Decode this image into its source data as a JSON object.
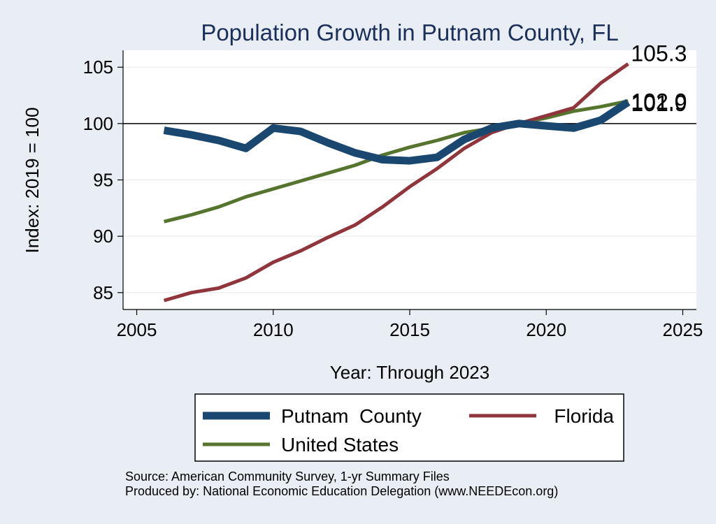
{
  "chart_data": {
    "type": "line",
    "title": "Population Growth in Putnam County, FL",
    "xlabel": "Year: Through 2023",
    "ylabel": "Index: 2019 = 100",
    "xlim": [
      2004.5,
      2025.5
    ],
    "ylim": [
      83.5,
      106.5
    ],
    "xticks": [
      "2005",
      "2010",
      "2015",
      "2020",
      "2025"
    ],
    "yticks": [
      "85",
      "90",
      "95",
      "100",
      "105"
    ],
    "grid": true,
    "reference_line": 100,
    "legend_position": "bottom",
    "x": [
      2006,
      2007,
      2008,
      2009,
      2010,
      2011,
      2012,
      2013,
      2014,
      2015,
      2016,
      2017,
      2018,
      2019,
      2020,
      2021,
      2022,
      2023
    ],
    "series": [
      {
        "name": "Putnam  County",
        "color": "#1a476f",
        "values": [
          99.4,
          99.0,
          98.5,
          97.8,
          99.6,
          99.3,
          98.3,
          97.4,
          96.8,
          96.7,
          97.0,
          98.6,
          99.6,
          100.0,
          99.8,
          99.6,
          100.3,
          101.9
        ],
        "end_label": "101.9"
      },
      {
        "name": "Florida",
        "color": "#90353b",
        "values": [
          84.3,
          85.0,
          85.4,
          86.3,
          87.7,
          88.7,
          89.9,
          91.0,
          92.6,
          94.4,
          96.0,
          97.8,
          99.2,
          100.0,
          100.7,
          101.4,
          103.6,
          105.3
        ],
        "end_label": "105.3"
      },
      {
        "name": "United States",
        "color": "#55752f",
        "values": [
          91.3,
          91.9,
          92.6,
          93.5,
          94.2,
          94.9,
          95.6,
          96.3,
          97.2,
          97.9,
          98.5,
          99.2,
          99.6,
          100.0,
          100.5,
          101.1,
          101.5,
          102.0
        ],
        "end_label": "102.0"
      }
    ],
    "legend_order": [
      0,
      1,
      2
    ]
  },
  "notes": {
    "source": "Source: American Community Survey, 1-yr Summary Files",
    "produced": "Produced by: National Economic Education Delegation (www.NEEDEcon.org)"
  }
}
